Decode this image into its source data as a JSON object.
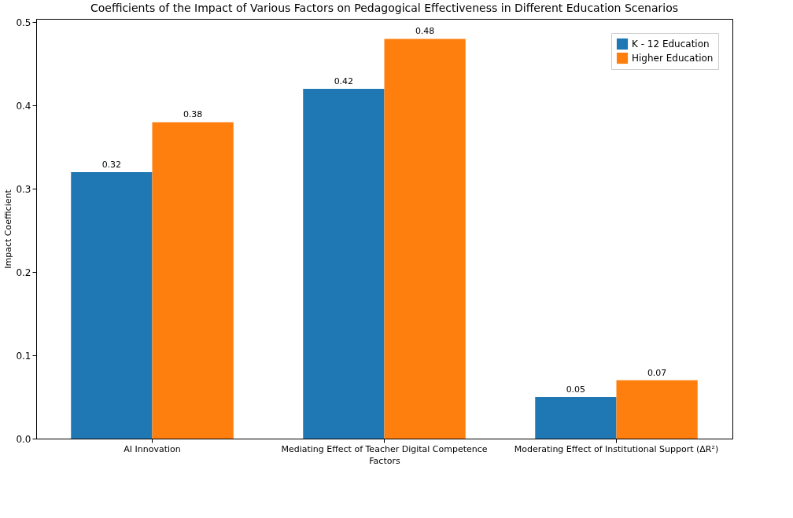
{
  "chart_data": {
    "type": "bar",
    "title": "Coefficients of the Impact of Various Factors on Pedagogical Effectiveness in Different Education Scenarios",
    "xlabel": "Factors",
    "ylabel": "Impact Coefficient",
    "categories": [
      "AI Innovation",
      "Mediating Effect of Teacher Digital Competence",
      "Moderating Effect of Institutional Support (ΔR²)"
    ],
    "series": [
      {
        "name": "K - 12 Education",
        "color": "#1f77b4",
        "values": [
          0.32,
          0.42,
          0.05
        ]
      },
      {
        "name": "Higher Education",
        "color": "#ff7f0e",
        "values": [
          0.38,
          0.48,
          0.07
        ]
      }
    ],
    "ylim": [
      0,
      0.504
    ],
    "yticks": [
      {
        "value": 0,
        "label": "0.0"
      },
      {
        "value": 0.1,
        "label": "0.1"
      },
      {
        "value": 0.2,
        "label": "0.2"
      },
      {
        "value": 0.3,
        "label": "0.3"
      },
      {
        "value": 0.4,
        "label": "0.4"
      },
      {
        "value": 0.5,
        "label": "0.5"
      }
    ],
    "data_labels": true,
    "legend": "top right",
    "grid": false
  }
}
